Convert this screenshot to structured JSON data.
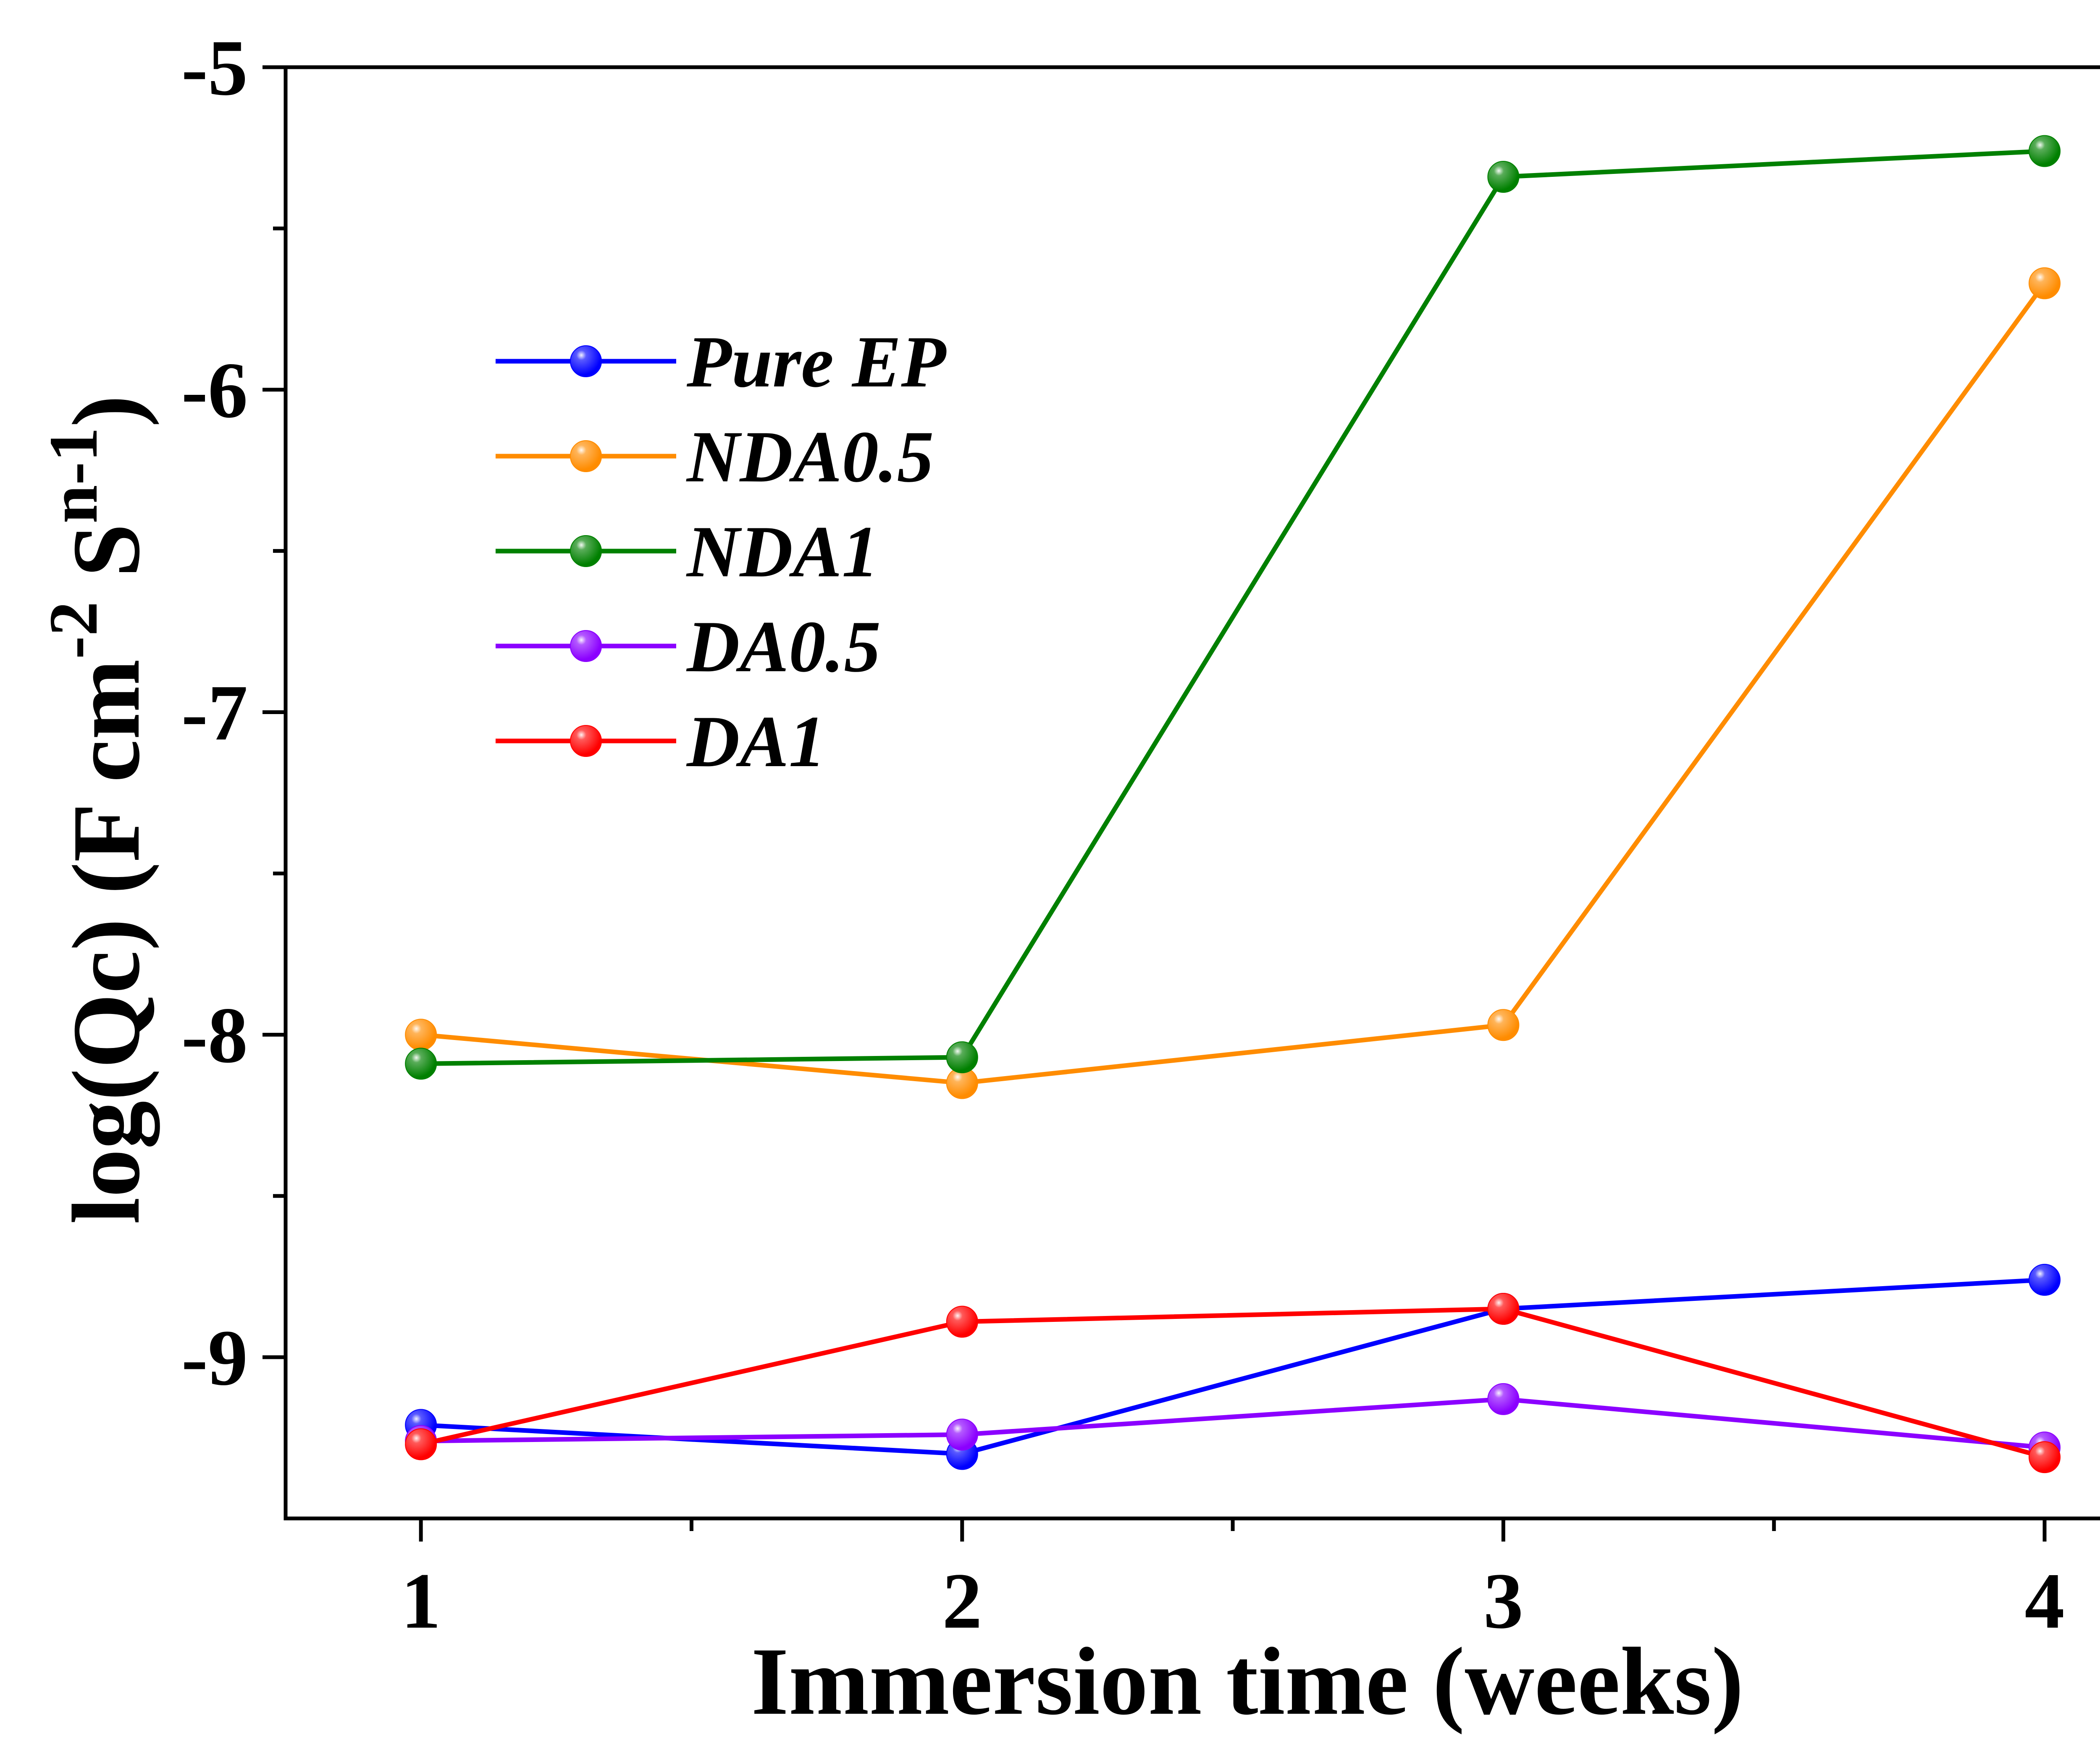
{
  "chart_data": {
    "type": "line",
    "title": "",
    "xlabel": "Immersion time (weeks)",
    "ylabel": {
      "main": "log(Qc) (F cm",
      "sup1": "-2",
      "mid": " S",
      "sup2": "n-1",
      "end": ")"
    },
    "x": [
      1,
      2,
      3,
      4
    ],
    "xticks": [
      "1",
      "2",
      "3",
      "4"
    ],
    "yticks": [
      "-5",
      "-6",
      "-7",
      "-8",
      "-9"
    ],
    "xlim": [
      0.75,
      4.18
    ],
    "ylim": [
      -9.5,
      -5
    ],
    "grid": false,
    "legend_position": "top-left",
    "series": [
      {
        "name": "Pure EP",
        "color": "#0000ff",
        "values": [
          -9.21,
          -9.3,
          -8.85,
          -8.76
        ]
      },
      {
        "name": "NDA0.5",
        "color": "#ff8c00",
        "values": [
          -8.0,
          -8.15,
          -7.97,
          -5.67
        ]
      },
      {
        "name": "NDA1",
        "color": "#008000",
        "values": [
          -8.09,
          -8.07,
          -5.34,
          -5.26
        ]
      },
      {
        "name": "DA0.5",
        "color": "#8b00ff",
        "values": [
          -9.26,
          -9.24,
          -9.13,
          -9.28
        ]
      },
      {
        "name": "DA1",
        "color": "#ff0000",
        "values": [
          -9.27,
          -8.89,
          -8.85,
          -9.31
        ]
      }
    ]
  }
}
